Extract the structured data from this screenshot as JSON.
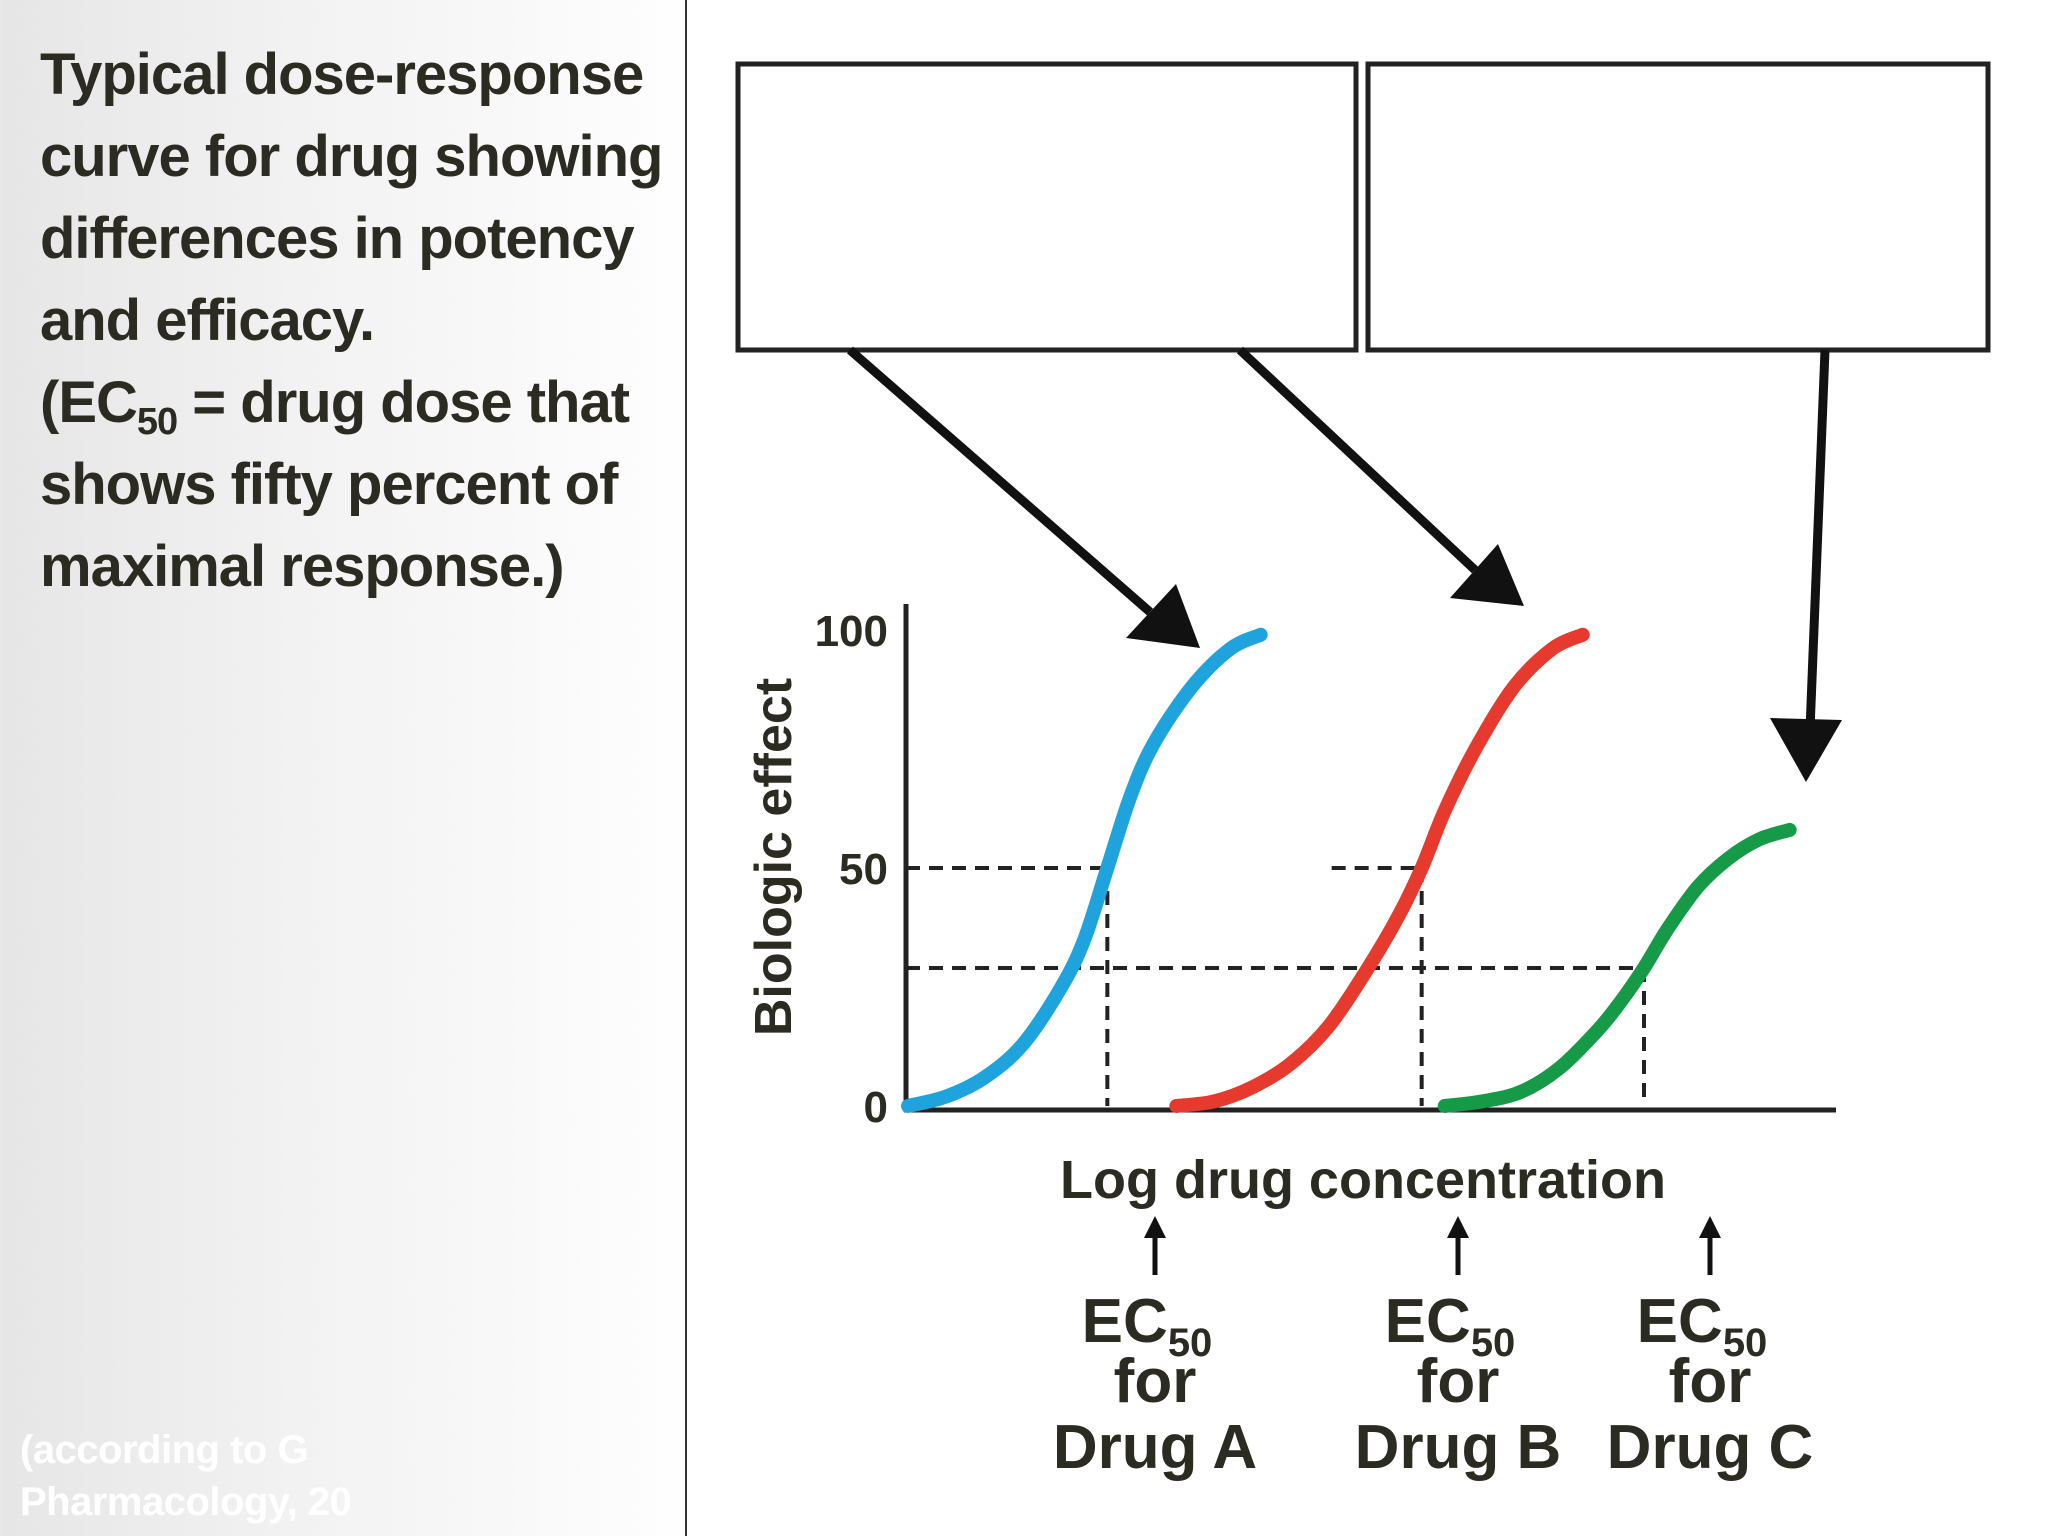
{
  "caption": {
    "line1": "Typical dose-response",
    "line2": "curve for drug showing",
    "line3": "differences in potency",
    "line4": "and efficacy.",
    "line5_pre": "(EC",
    "line5_sub": "50",
    "line5_post": " = drug dose that",
    "line6": "shows fifty percent of",
    "line7": "maximal response.)"
  },
  "credit": {
    "line1": "(according to G",
    "line2": "Pharmacology, 20"
  },
  "chart_data": {
    "type": "line",
    "xlabel": "Log drug concentration",
    "ylabel": "Biologic effect",
    "ylim": [
      0,
      100
    ],
    "yticks": [
      "0",
      "50",
      "100"
    ],
    "grid": false,
    "series": [
      {
        "name": "Drug A",
        "color": "#1fa3dc",
        "ec50": 2.6,
        "emax": 100,
        "x": [
          0.0,
          0.5,
          1.0,
          1.5,
          2.0,
          2.3,
          2.6,
          2.9,
          3.2,
          3.7,
          4.2,
          4.6
        ],
        "y": [
          0,
          2,
          6,
          13,
          25,
          35,
          50,
          65,
          76,
          88,
          96,
          99
        ]
      },
      {
        "name": "Drug B",
        "color": "#e63a2e",
        "ec50": 6.7,
        "emax": 100,
        "x": [
          3.5,
          4.0,
          4.5,
          5.0,
          5.5,
          6.0,
          6.4,
          6.7,
          7.0,
          7.4,
          7.9,
          8.4,
          8.8
        ],
        "y": [
          0,
          1,
          4,
          9,
          17,
          29,
          40,
          50,
          62,
          75,
          88,
          96,
          99
        ]
      },
      {
        "name": "Drug C",
        "color": "#179a48",
        "ec50": 9.6,
        "emax": 58,
        "x": [
          7.0,
          7.5,
          8.0,
          8.5,
          9.0,
          9.3,
          9.6,
          9.9,
          10.3,
          10.7,
          11.1,
          11.5
        ],
        "y": [
          0,
          1,
          3,
          8,
          16,
          22,
          29,
          37,
          46,
          52,
          56,
          58
        ]
      }
    ],
    "reference_lines": {
      "half_max_effect": 50,
      "drug_c_half_max_effect": 29
    },
    "annotations": {
      "ec50_prefix": "EC",
      "ec50_sub": "50",
      "for_label": "for",
      "drug_labels": [
        "Drug A",
        "Drug B",
        "Drug C"
      ]
    }
  }
}
